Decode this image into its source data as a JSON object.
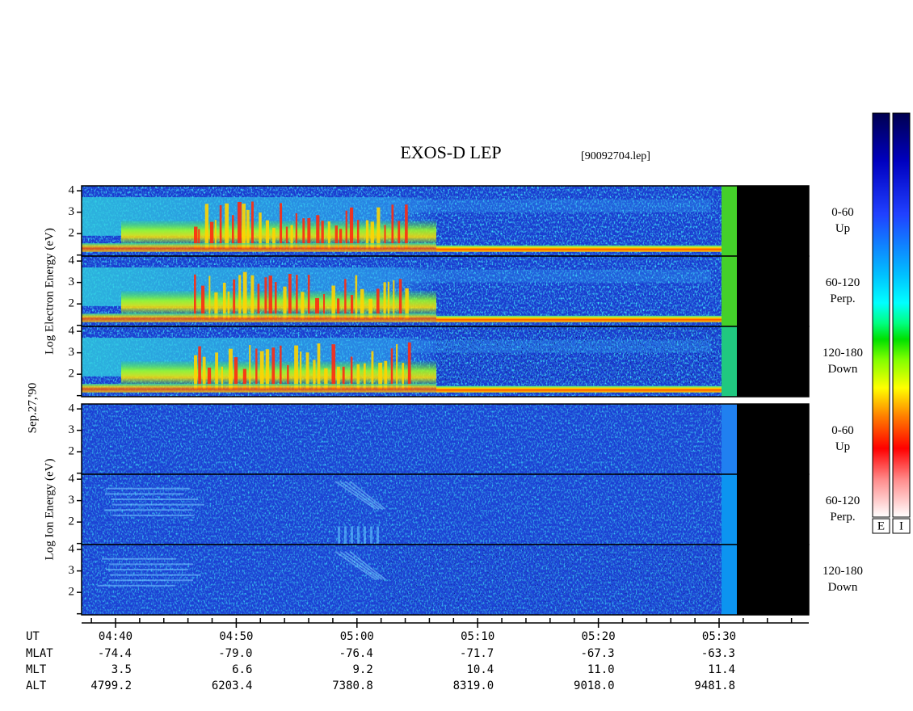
{
  "title": "EXOS-D LEP",
  "file_id": "[90092704.lep]",
  "date": "Sep.27,'90",
  "y_axis": {
    "ylim": [
      0.95,
      4.23
    ],
    "yticks": [
      {
        "value": 1,
        "label": null
      },
      2,
      3,
      4
    ]
  },
  "groups": [
    {
      "ylabel": "Log  Electron  Energy (eV)",
      "panels": [
        {
          "pitch": "0-60",
          "direction": "Up"
        },
        {
          "pitch": "60-120",
          "direction": "Perp."
        },
        {
          "pitch": "120-180",
          "direction": "Down"
        }
      ]
    },
    {
      "ylabel": "Log  Ion  Energy (eV)",
      "panels": [
        {
          "pitch": "0-60",
          "direction": "Up"
        },
        {
          "pitch": "60-120",
          "direction": "Perp."
        },
        {
          "pitch": "120-180",
          "direction": "Down"
        }
      ]
    }
  ],
  "ephemeris": {
    "row_labels": [
      "UT",
      "MLAT",
      "MLT",
      "ALT"
    ],
    "UT": [
      "04:40",
      "04:50",
      "05:00",
      "05:10",
      "05:20",
      "05:30"
    ],
    "MLAT": [
      "-74.4",
      "-79.0",
      "-76.4",
      "-71.7",
      "-67.3",
      "-63.3"
    ],
    "MLT": [
      "3.5",
      "6.6",
      "9.2",
      "10.4",
      "11.0",
      "11.4"
    ],
    "ALT": [
      "4799.2",
      "6203.4",
      "7380.8",
      "8319.0",
      "9018.0",
      "9481.8"
    ]
  },
  "colorbars": [
    "E",
    "I"
  ]
}
